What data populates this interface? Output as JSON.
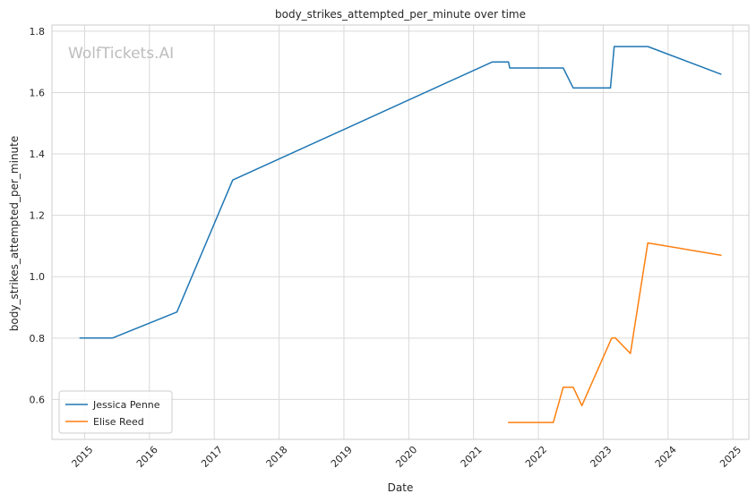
{
  "chart_data": {
    "type": "line",
    "title": "body_strikes_attempted_per_minute over time",
    "xlabel": "Date",
    "ylabel": "body_strikes_attempted_per_minute",
    "watermark": "WolfTickets.AI",
    "x_ticks": [
      "2015",
      "2016",
      "2017",
      "2018",
      "2019",
      "2020",
      "2021",
      "2022",
      "2023",
      "2024",
      "2025"
    ],
    "y_ticks": [
      "0.6",
      "0.8",
      "1.0",
      "1.2",
      "1.4",
      "1.6",
      "1.8"
    ],
    "xlim": [
      "2014-07-01",
      "2025-04-01"
    ],
    "ylim": [
      0.47,
      1.82
    ],
    "grid": true,
    "legend_position": "lower-left",
    "series": [
      {
        "name": "Jessica Penne",
        "color": "#1f77b4",
        "points": [
          [
            "2014-12-06",
            0.8
          ],
          [
            "2015-06-06",
            0.8
          ],
          [
            "2016-06-04",
            0.885
          ],
          [
            "2017-04-15",
            1.315
          ],
          [
            "2021-04-17",
            1.7
          ],
          [
            "2021-07-17",
            1.7
          ],
          [
            "2021-07-24",
            1.68
          ],
          [
            "2022-05-21",
            1.68
          ],
          [
            "2022-07-16",
            1.615
          ],
          [
            "2023-02-11",
            1.615
          ],
          [
            "2023-03-04",
            1.75
          ],
          [
            "2023-09-09",
            1.75
          ],
          [
            "2024-10-26",
            1.66
          ]
        ]
      },
      {
        "name": "Elise Reed",
        "color": "#ff7f0e",
        "points": [
          [
            "2021-07-17",
            0.525
          ],
          [
            "2022-03-26",
            0.525
          ],
          [
            "2022-05-21",
            0.64
          ],
          [
            "2022-07-16",
            0.64
          ],
          [
            "2022-09-03",
            0.58
          ],
          [
            "2023-02-18",
            0.8
          ],
          [
            "2023-03-11",
            0.8
          ],
          [
            "2023-06-03",
            0.75
          ],
          [
            "2023-09-09",
            1.11
          ],
          [
            "2024-10-26",
            1.07
          ]
        ]
      }
    ]
  }
}
